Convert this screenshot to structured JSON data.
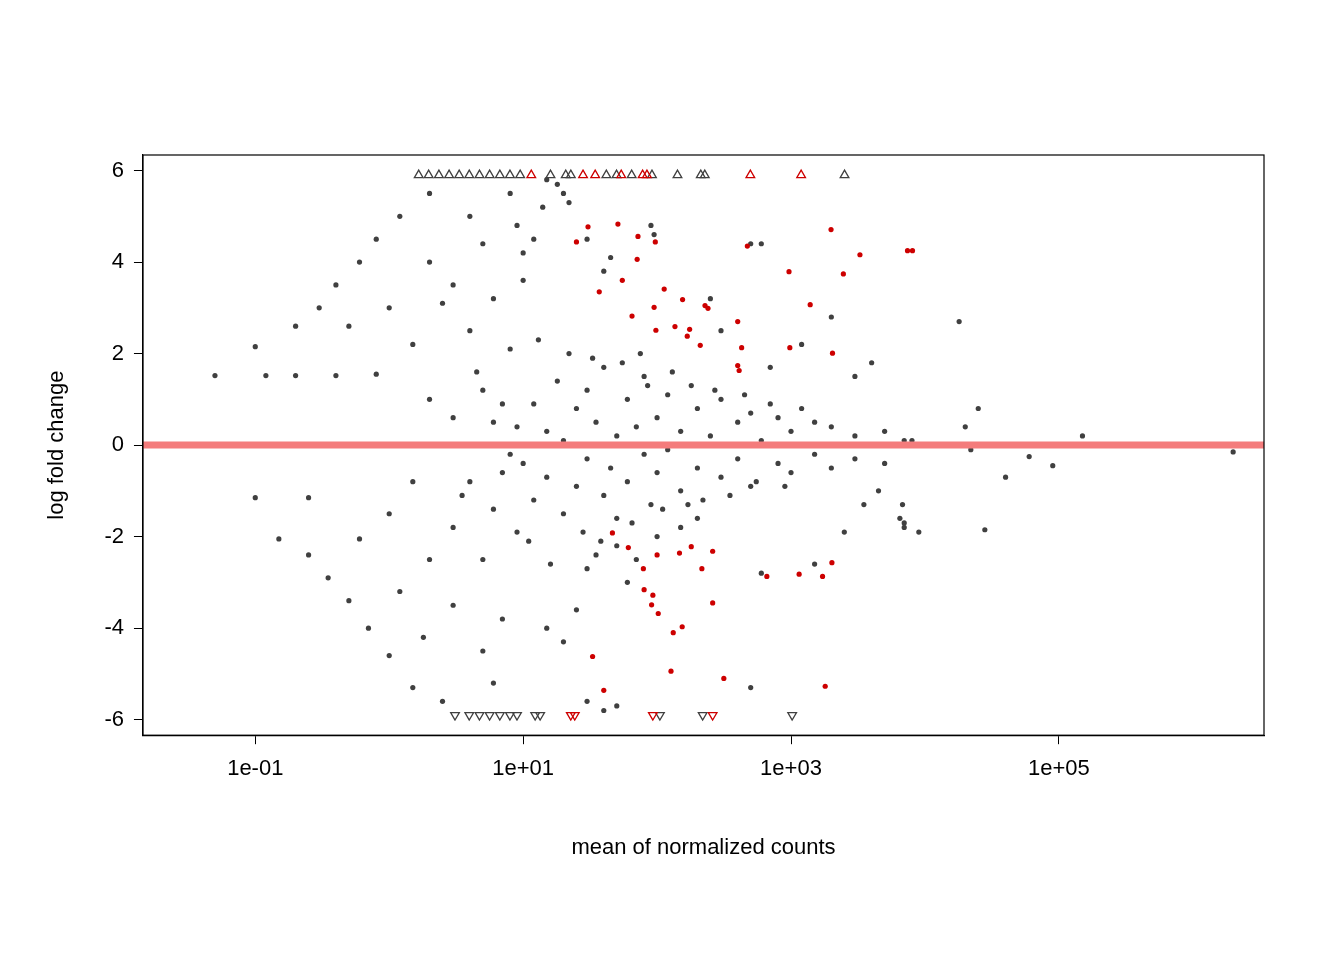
{
  "chart_data": {
    "type": "scatter",
    "x_label": "mean of normalized counts",
    "y_label": "log fold change",
    "log": "x",
    "grid": false,
    "xlim": [
      0.0145,
      3400000
    ],
    "xticks": [
      {
        "value": 0.1,
        "label": "1e-01"
      },
      {
        "value": 10,
        "label": "1e+01"
      },
      {
        "value": 1000,
        "label": "1e+03"
      },
      {
        "value": 100000,
        "label": "1e+05"
      }
    ],
    "ylim": [
      -6.34,
      6.34
    ],
    "yticks": [
      -6,
      -4,
      -2,
      0,
      2,
      4,
      6
    ],
    "series": [
      {
        "type": "line",
        "color": "#f47c7c",
        "line_style": "solid",
        "x": [
          0.0145,
          3400000
        ],
        "values": [
          0,
          0
        ]
      },
      {
        "color": "#cd0000",
        "marker": "circle",
        "x": [
          30.5,
          51,
          72,
          97,
          71,
          25,
          37,
          55,
          113,
          155,
          228,
          400,
          472,
          966,
          1390,
          1990,
          2460,
          3270,
          7410,
          8070,
          95,
          65,
          136,
          168,
          175,
          240,
          98,
          410,
          400,
          980,
          2040,
          428,
          210,
          46.4,
          61,
          180,
          79,
          216,
          100,
          147,
          260,
          80,
          91,
          93,
          102,
          132,
          154,
          260,
          660,
          1150,
          1720,
          2020,
          33,
          40,
          127,
          315,
          1800
        ],
        "values": [
          4.77,
          4.83,
          4.56,
          4.44,
          4.06,
          4.44,
          3.35,
          3.6,
          3.41,
          3.18,
          3.05,
          2.7,
          4.35,
          3.79,
          3.07,
          4.71,
          3.74,
          4.16,
          4.25,
          4.25,
          3.01,
          2.82,
          2.59,
          2.38,
          2.53,
          2.99,
          2.51,
          1.63,
          1.74,
          2.13,
          2.01,
          2.13,
          2.18,
          -1.92,
          -2.24,
          -2.22,
          -2.7,
          -2.7,
          -2.4,
          -2.36,
          -2.32,
          -3.16,
          -3.49,
          -3.28,
          -3.68,
          -4.1,
          -3.97,
          -3.45,
          -2.87,
          -2.82,
          -2.87,
          -2.57,
          -4.62,
          -5.36,
          -4.94,
          -5.1,
          -5.27
        ]
      },
      {
        "color": "#cd0000",
        "marker": "open_triangle_up",
        "x": [
          11.5,
          28,
          34.5,
          54,
          78,
          84,
          497,
          1190
        ],
        "values": [
          5.9,
          5.9,
          5.9,
          5.9,
          5.9,
          5.9,
          5.9,
          5.9
        ]
      },
      {
        "color": "#cd0000",
        "marker": "open_triangle_down",
        "x": [
          22.7,
          24.3,
          93,
          260
        ],
        "values": [
          -5.9,
          -5.9,
          -5.9,
          -5.9
        ]
      },
      {
        "color": "#404040",
        "marker": "circle",
        "x": [
          0.03,
          0.05,
          0.06,
          0.08,
          0.1,
          0.1,
          0.12,
          0.15,
          0.15,
          0.2,
          0.2,
          0.25,
          0.25,
          0.3,
          0.3,
          0.35,
          0.4,
          0.4,
          0.5,
          0.5,
          0.6,
          0.6,
          0.7,
          0.8,
          0.8,
          1,
          1,
          1,
          1.2,
          1.5,
          1.5,
          2,
          2,
          2,
          2.5,
          3,
          3,
          4,
          5,
          5,
          6,
          8,
          1.5,
          2,
          3,
          4,
          5,
          6,
          7,
          9,
          1.2,
          1.8,
          2.5,
          3.5,
          4.5,
          6,
          7,
          8,
          9,
          10,
          10,
          12,
          12,
          15,
          15,
          18,
          20,
          20,
          25,
          25,
          30,
          30,
          35,
          40,
          40,
          45,
          50,
          50,
          60,
          60,
          70,
          80,
          80,
          90,
          100,
          100,
          120,
          120,
          150,
          150,
          200,
          200,
          250,
          300,
          300,
          400,
          400,
          500,
          500,
          600,
          800,
          800,
          1000,
          1000,
          1500,
          1500,
          2000,
          2000,
          3000,
          3000,
          5000,
          5000,
          7000,
          7000,
          8000,
          18000,
          20000,
          25000,
          22000,
          28000,
          40000,
          60000,
          90000,
          150000,
          2000000,
          6500,
          6800,
          3500,
          4000,
          4500,
          15,
          18,
          20,
          22,
          12,
          14,
          10,
          30,
          40,
          45,
          90,
          95,
          500,
          600,
          250,
          300,
          2000,
          1200,
          3000,
          700,
          15,
          20,
          25,
          30,
          40,
          50,
          60,
          30,
          35,
          50,
          500,
          600,
          1500,
          2500,
          7000,
          9000,
          100,
          150,
          200,
          70,
          3,
          4,
          5,
          6,
          7,
          8,
          9,
          11,
          13,
          16,
          22,
          28,
          33,
          38,
          55,
          65,
          75,
          85,
          110,
          130,
          170,
          180,
          220,
          270,
          350,
          450,
          550,
          700,
          900,
          1200
        ],
        "values": [
          0,
          1.52,
          0,
          0,
          2.15,
          -1.15,
          1.52,
          -2.05,
          0,
          2.6,
          1.52,
          -2.4,
          -1.15,
          3.0,
          0,
          -2.9,
          3.5,
          1.52,
          -3.4,
          2.6,
          4.0,
          -2.05,
          -4.0,
          4.5,
          1.55,
          -4.6,
          3.0,
          -1.5,
          5.0,
          -5.3,
          2.2,
          5.5,
          -2.5,
          4.0,
          -5.6,
          -3.5,
          3.5,
          5.0,
          -4.5,
          4.4,
          -5.2,
          5.5,
          -0.8,
          1.0,
          -1.8,
          2.5,
          -2.5,
          3.2,
          -3.8,
          4.8,
          -3.2,
          -4.2,
          3.1,
          -1.1,
          1.6,
          0.5,
          -0.6,
          2.1,
          -1.9,
          3.6,
          -0.4,
          0.9,
          -1.2,
          0.3,
          -0.7,
          1.4,
          -1.5,
          0.1,
          0.8,
          -0.9,
          1.2,
          -0.3,
          0.5,
          -1.1,
          1.7,
          -0.5,
          0.2,
          -1.6,
          1.0,
          -0.8,
          0.4,
          -0.2,
          1.5,
          -1.3,
          0.6,
          -0.6,
          1.1,
          -0.1,
          0.3,
          -1.0,
          0.8,
          -0.5,
          0.2,
          1.0,
          -0.7,
          0.5,
          -0.3,
          0.7,
          -0.9,
          0.1,
          0.6,
          -0.4,
          0.3,
          -0.6,
          0.5,
          -0.2,
          0.4,
          -0.5,
          0.2,
          -0.3,
          0.3,
          -0.4,
          0.1,
          -1.8,
          0.1,
          2.7,
          0.4,
          0.8,
          -0.1,
          -1.85,
          -0.7,
          -0.25,
          -0.45,
          0.2,
          -0.15,
          -1.6,
          -1.3,
          -1.3,
          1.8,
          -1.0,
          5.8,
          5.7,
          5.5,
          5.3,
          4.5,
          5.2,
          4.2,
          4.5,
          3.8,
          4.1,
          4.8,
          4.6,
          4.4,
          4.4,
          3.2,
          2.5,
          2.8,
          2.2,
          1.5,
          1.7,
          -4.0,
          -4.3,
          -3.6,
          -5.6,
          -5.8,
          -5.7,
          -3.0,
          -2.7,
          -2.4,
          -2.2,
          -5.3,
          -2.8,
          -2.6,
          -1.9,
          -1.7,
          -1.9,
          -2.0,
          -1.8,
          -1.6,
          -2.5,
          0.6,
          -0.8,
          1.2,
          -1.4,
          0.9,
          -0.2,
          0.4,
          -2.1,
          2.3,
          -2.6,
          2.0,
          -1.9,
          1.9,
          -2.1,
          1.8,
          -1.7,
          2.0,
          1.3,
          -1.4,
          1.6,
          -1.3,
          1.3,
          -1.2,
          1.2,
          -1.1,
          1.1,
          -0.8,
          0.9,
          -0.9,
          0.8
        ]
      },
      {
        "color": "#404040",
        "marker": "open_triangle_up",
        "x": [
          1.66,
          1.97,
          2.35,
          2.8,
          3.33,
          3.96,
          4.72,
          5.62,
          6.7,
          7.97,
          9.5,
          16,
          20.8,
          22.7,
          41.8,
          49.8,
          64.6,
          91.6,
          142,
          212,
          227,
          2510
        ],
        "values": [
          5.9,
          5.9,
          5.9,
          5.9,
          5.9,
          5.9,
          5.9,
          5.9,
          5.9,
          5.9,
          5.9,
          5.9,
          5.9,
          5.9,
          5.9,
          5.9,
          5.9,
          5.9,
          5.9,
          5.9,
          5.9,
          5.9
        ]
      },
      {
        "color": "#404040",
        "marker": "open_triangle_down",
        "x": [
          3.1,
          3.96,
          4.72,
          5.62,
          6.7,
          7.97,
          9.0,
          12.3,
          13.4,
          105,
          219,
          1020
        ],
        "values": [
          -5.9,
          -5.9,
          -5.9,
          -5.9,
          -5.9,
          -5.9,
          -5.9,
          -5.9,
          -5.9,
          -5.9,
          -5.9,
          -5.9
        ]
      }
    ]
  }
}
